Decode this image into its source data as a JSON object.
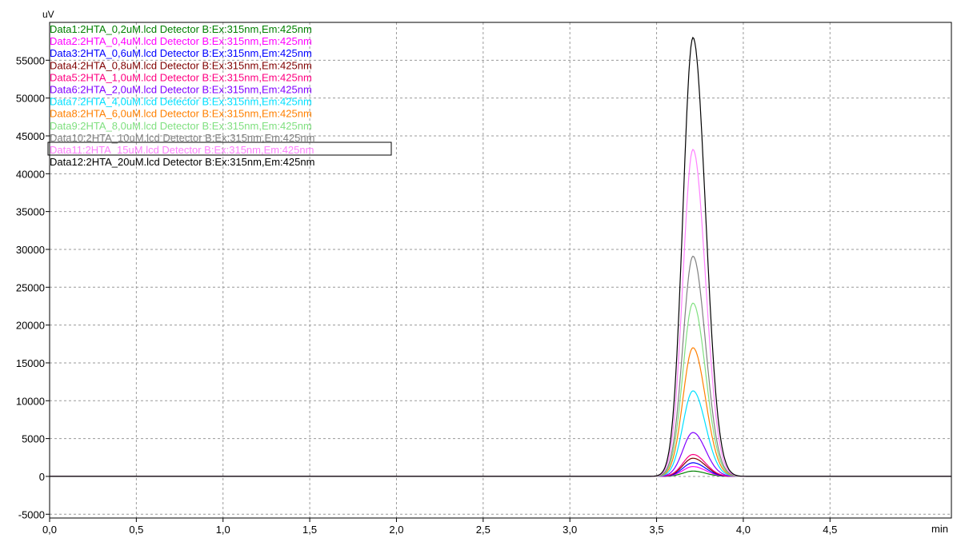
{
  "chart_data": {
    "type": "line",
    "ylabel": "uV",
    "xlabel": "min",
    "xlim": [
      0.0,
      5.2
    ],
    "ylim": [
      -5500,
      60000
    ],
    "x_ticks": [
      0.0,
      0.5,
      1.0,
      1.5,
      2.0,
      2.5,
      3.0,
      3.5,
      4.0,
      4.5
    ],
    "x_tick_labels": [
      "0,0",
      "0,5",
      "1,0",
      "1,5",
      "2,0",
      "2,5",
      "3,0",
      "3,5",
      "4,0",
      "4,5"
    ],
    "y_ticks": [
      -5000,
      0,
      5000,
      10000,
      15000,
      20000,
      25000,
      30000,
      35000,
      40000,
      45000,
      50000,
      55000
    ],
    "y_tick_labels": [
      "-5000",
      "0",
      "5000",
      "10000",
      "15000",
      "20000",
      "25000",
      "30000",
      "35000",
      "40000",
      "45000",
      "50000",
      "55000"
    ],
    "grid": true,
    "legend_position": "top-left",
    "peak_time": 3.71,
    "series": [
      {
        "name": "Data1:2HTA_0,2uM.lcd Detector B:Ex:315nm,Em:425nm",
        "color": "#008000",
        "peak_height": 700
      },
      {
        "name": "Data2:2HTA_0,4uM.lcd Detector B:Ex:315nm,Em:425nm",
        "color": "#ff00ff",
        "peak_height": 1300
      },
      {
        "name": "Data3:2HTA_0,6uM.lcd Detector B:Ex:315nm,Em:425nm",
        "color": "#0000ff",
        "peak_height": 1800
      },
      {
        "name": "Data4:2HTA_0,8uM.lcd Detector B:Ex:315nm,Em:425nm",
        "color": "#800000",
        "peak_height": 2400
      },
      {
        "name": "Data5:2HTA_1,0uM.lcd Detector B:Ex:315nm,Em:425nm",
        "color": "#ff0080",
        "peak_height": 2900
      },
      {
        "name": "Data6:2HTA_2,0uM.lcd Detector B:Ex:315nm,Em:425nm",
        "color": "#8000ff",
        "peak_height": 5800
      },
      {
        "name": "Data7:2HTA_4,0uM.lcd Detector B:Ex:315nm,Em:425nm",
        "color": "#00e0ff",
        "peak_height": 11300
      },
      {
        "name": "Data8:2HTA_6,0uM.lcd Detector B:Ex:315nm,Em:425nm",
        "color": "#ff8000",
        "peak_height": 17000
      },
      {
        "name": "Data9:2HTA_8,0uM.lcd Detector B:Ex:315nm,Em:425nm",
        "color": "#80e080",
        "peak_height": 22900
      },
      {
        "name": "Data10:2HTA_10uM.lcd Detector B:Ex:315nm,Em:425nm",
        "color": "#808080",
        "peak_height": 29100
      },
      {
        "name": "Data11:2HTA_15uM.lcd Detector B:Ex:315nm,Em:425nm",
        "color": "#ff80ff",
        "peak_height": 43200
      },
      {
        "name": "Data12:2HTA_20uM.lcd Detector B:Ex:315nm,Em:425nm",
        "color": "#000000",
        "peak_height": 58000
      }
    ]
  }
}
